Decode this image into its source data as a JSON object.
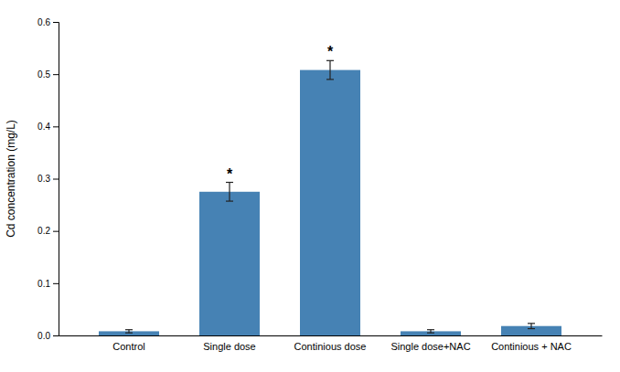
{
  "chart_data": {
    "type": "bar",
    "ylabel": "Cd concentration (mg/L)",
    "categories": [
      "Control",
      "Single dose",
      "Continious dose",
      "Single dose+NAC",
      "Continious + NAC"
    ],
    "values": [
      0.008,
      0.275,
      0.508,
      0.008,
      0.018
    ],
    "errors": [
      0.003,
      0.018,
      0.018,
      0.003,
      0.005
    ],
    "ylim": [
      0,
      0.6
    ],
    "yticks": [
      {
        "value": 0,
        "label": "0.0"
      },
      0.1,
      0.2,
      0.3,
      0.4,
      0.5,
      0.6
    ],
    "annotations": [
      {
        "text": "*",
        "category": "Single dose"
      },
      {
        "text": "*",
        "category": "Continious dose"
      }
    ],
    "grid": false
  }
}
